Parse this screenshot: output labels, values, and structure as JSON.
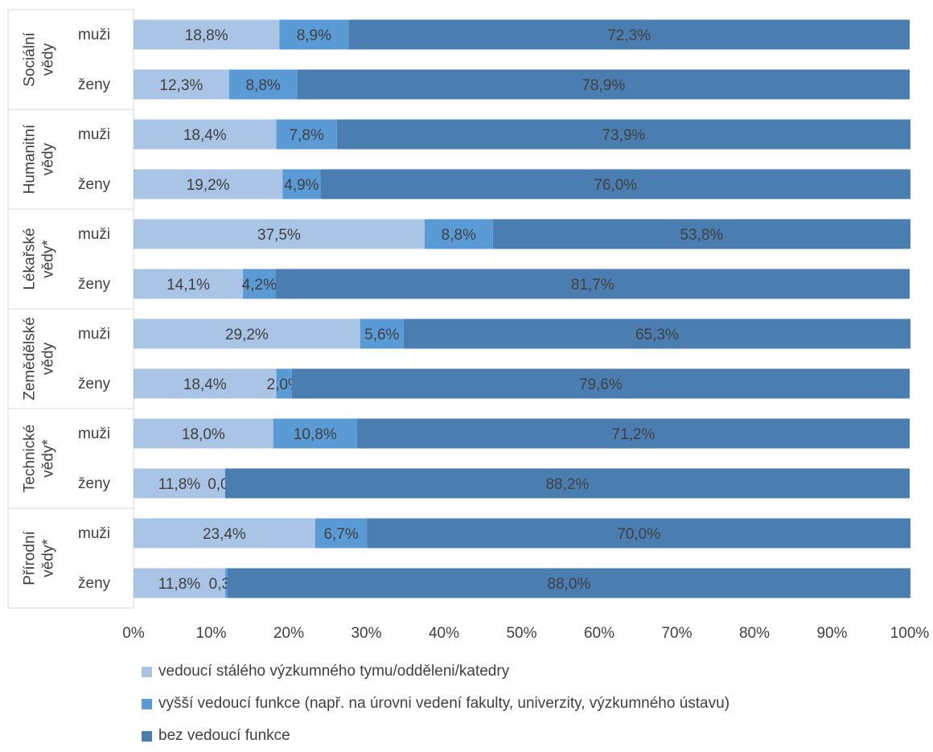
{
  "chart_data": {
    "type": "bar",
    "orientation": "horizontal",
    "stacked": "percent",
    "groups": [
      {
        "label": "Sociální vědy",
        "rows": [
          {
            "label": "muži",
            "values": [
              18.8,
              8.9,
              72.3
            ]
          },
          {
            "label": "ženy",
            "values": [
              12.3,
              8.8,
              78.9
            ]
          }
        ]
      },
      {
        "label": "Humanitní vědy",
        "rows": [
          {
            "label": "muži",
            "values": [
              18.4,
              7.8,
              73.9
            ]
          },
          {
            "label": "ženy",
            "values": [
              19.2,
              4.9,
              76.0
            ]
          }
        ]
      },
      {
        "label": "Lékařské vědy*",
        "rows": [
          {
            "label": "muži",
            "values": [
              37.5,
              8.8,
              53.8
            ]
          },
          {
            "label": "ženy",
            "values": [
              14.1,
              4.2,
              81.7
            ]
          }
        ]
      },
      {
        "label": "Zemědělské vědy",
        "rows": [
          {
            "label": "muži",
            "values": [
              29.2,
              5.6,
              65.3
            ]
          },
          {
            "label": "ženy",
            "values": [
              18.4,
              2.0,
              79.6
            ]
          }
        ]
      },
      {
        "label": "Technické vědy*",
        "rows": [
          {
            "label": "muži",
            "values": [
              18.0,
              10.8,
              71.2
            ]
          },
          {
            "label": "ženy",
            "values": [
              11.8,
              0.0,
              88.2
            ]
          }
        ]
      },
      {
        "label": "Přírodní vědy*",
        "rows": [
          {
            "label": "muži",
            "values": [
              23.4,
              6.7,
              70.0
            ]
          },
          {
            "label": "ženy",
            "values": [
              11.8,
              0.3,
              88.0
            ]
          }
        ]
      }
    ],
    "series": [
      {
        "name": "vedoucí stálého výzkumného tymu/odděleni/katedry",
        "color": "#A9C4E4"
      },
      {
        "name": "vyšší vedoucí funkce (např. na úrovni vedení fakulty, univerzity, výzkumného ústavu)",
        "color": "#5A9BD5"
      },
      {
        "name": "bez vedoucí funkce",
        "color": "#4A7EB0"
      }
    ],
    "xlim": [
      0,
      100
    ],
    "xticks": [
      "0%",
      "10%",
      "20%",
      "30%",
      "40%",
      "50%",
      "60%",
      "70%",
      "80%",
      "90%",
      "100%"
    ],
    "grid": false,
    "legend_position": "bottom-left"
  }
}
